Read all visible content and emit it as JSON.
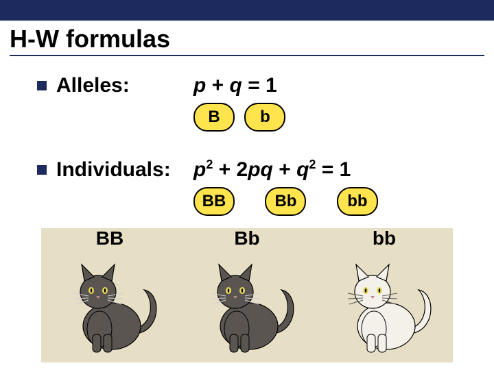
{
  "layout": {
    "topbar_height": 30,
    "topbar_color": "#1c2a5e",
    "page_bg": "#ffffff",
    "title_fontsize": 36,
    "body_fontsize": 30
  },
  "title": "H-W formulas",
  "sections": [
    {
      "label": "Alleles:",
      "formula_html": "<i>p</i> + <i>q</i> = 1",
      "pills": [
        "B",
        "b"
      ]
    },
    {
      "label": "Individuals:",
      "formula_html": "<i>p</i><sup class='sp'>2</sup> + 2<i>p</i><i>q</i> + <i>q</i><sup class='sp'>2</sup> = 1",
      "pills": [
        "BB",
        "Bb",
        "bb"
      ]
    }
  ],
  "pill_style": {
    "bg": "#ffe44d",
    "border": "#000000",
    "radius": 20
  },
  "cats": [
    {
      "genotype": "BB",
      "body_color": "#5a5550",
      "whisker_color": "#cfcfcf"
    },
    {
      "genotype": "Bb",
      "body_color": "#5a5550",
      "whisker_color": "#cfcfcf"
    },
    {
      "genotype": "bb",
      "body_color": "#f4f1ea",
      "whisker_color": "#5a5550"
    }
  ],
  "cats_strip_bg": "#e6dfc6"
}
